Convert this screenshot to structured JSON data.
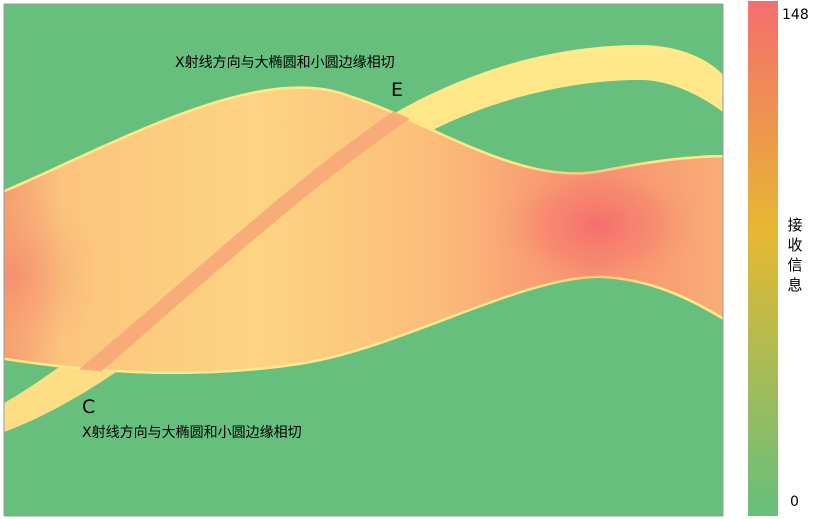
{
  "chart_data": {
    "type": "heatmap",
    "title": "",
    "xlabel": "",
    "ylabel": "",
    "colorbar": {
      "label": "接收信息",
      "min": 0,
      "max": 148,
      "tick_min_label": "0",
      "tick_max_label": "148",
      "colors": [
        "#66bf7c",
        "#e6b832",
        "#f56e6e"
      ]
    },
    "background_color": "#66bf7c",
    "annotations": {
      "top_text": "X射线方向与大椭圆和小圆边缘相切",
      "bottom_text": "X射线方向与大椭圆和小圆边缘相切",
      "point_E": "E",
      "point_C": "C"
    },
    "peak_value": 148,
    "region_min_value": 60
  }
}
